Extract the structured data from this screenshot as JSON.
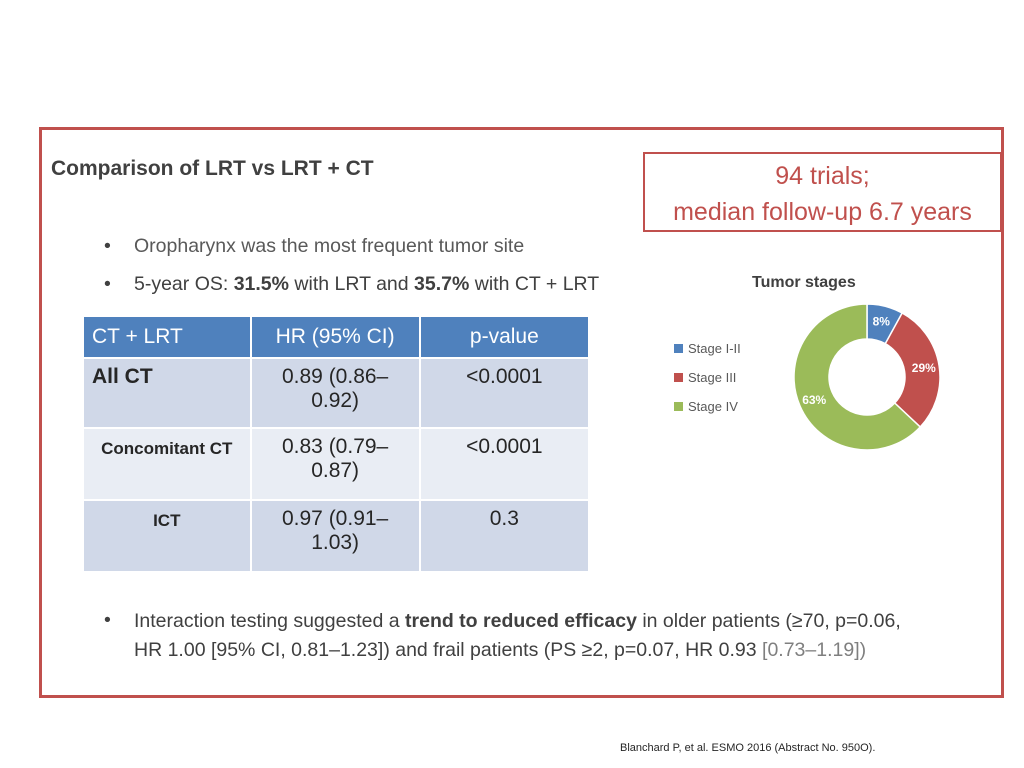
{
  "heading": "Comparison of LRT vs LRT + CT",
  "callout": {
    "line1": "94 trials;",
    "line2": "median follow-up 6.7 years"
  },
  "bullets": {
    "b1": "Oropharynx was the most frequent tumor site",
    "b2": {
      "pre": "5-year OS: ",
      "v1": "31.5%",
      "mid": " with LRT and ",
      "v2": "35.7%",
      "post": " with CT + LRT"
    },
    "b3": {
      "pre": "Interaction testing suggested a ",
      "bold": "trend to reduced efficacy",
      "post": " in older patients (≥70, p=0.06, HR 1.00 [95% CI, 0.81–1.23]) and frail patients (PS ≥2, p=0.07, HR 0.93 ",
      "tail": "[0.73–1.19])"
    }
  },
  "table": {
    "headers": [
      "CT + LRT",
      "HR (95% CI)",
      "p-value"
    ],
    "rows": [
      {
        "label": "All CT",
        "hr": "0.89 (0.86–0.92)",
        "p": "<0.0001"
      },
      {
        "label": "Concomitant CT",
        "hr": "0.83 (0.79–0.87)",
        "p": "<0.0001"
      },
      {
        "label": "ICT",
        "hr": "0.97 (0.91–1.03)",
        "p": "0.3"
      }
    ]
  },
  "chart_data": {
    "type": "pie",
    "title": "Tumor stages",
    "categories": [
      "Stage I-II",
      "Stage III",
      "Stage IV"
    ],
    "values": [
      8,
      29,
      63
    ],
    "labels": [
      "8%",
      "29%",
      "63%"
    ],
    "colors": [
      "#4f81bd",
      "#c0504d",
      "#9bbb59"
    ],
    "legend_position": "left"
  },
  "footnote": "Blanchard P, et al. ESMO 2016 (Abstract No. 950O)."
}
